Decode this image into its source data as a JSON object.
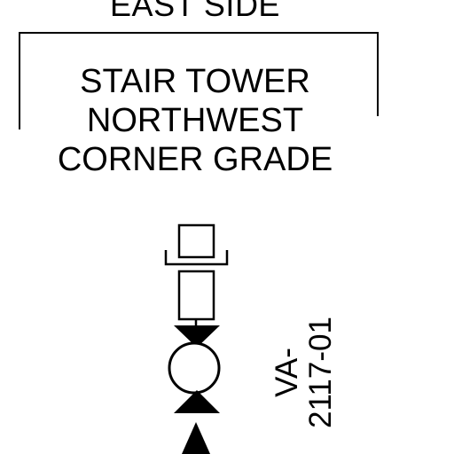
{
  "drawing": {
    "heading": "EAST SIDE",
    "location_lines": [
      "STAIR TOWER",
      "NORTHWEST",
      "CORNER GRADE"
    ],
    "valve_tag_lines": [
      "VA-",
      "2117-01"
    ]
  },
  "colors": {
    "ink": "#000000",
    "paper": "#ffffff"
  }
}
